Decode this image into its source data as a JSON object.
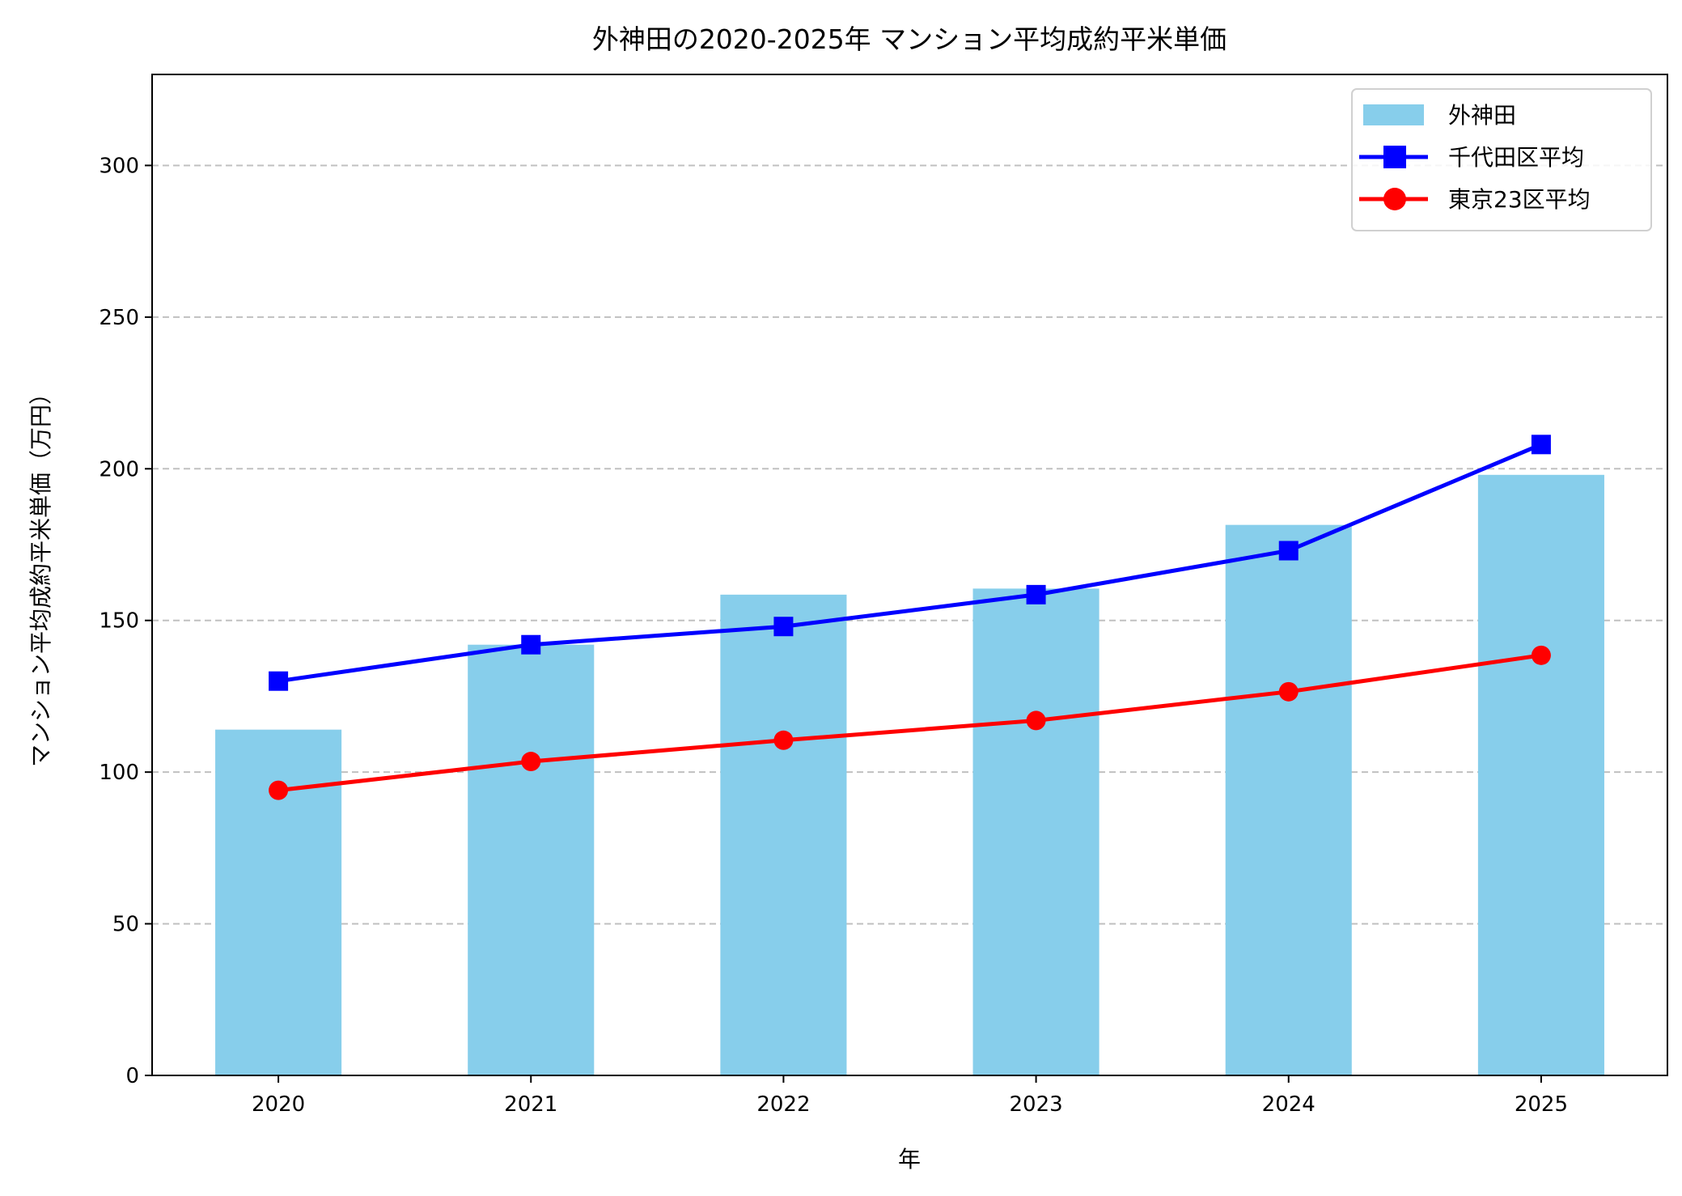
{
  "chart_data": {
    "type": "bar+line",
    "title": "外神田の2020-2025年 マンション平均成約平米単価",
    "xlabel": "年",
    "ylabel": "マンション平均成約平米単価（万円）",
    "categories": [
      "2020",
      "2021",
      "2022",
      "2023",
      "2024",
      "2025"
    ],
    "ylim": [
      0,
      330
    ],
    "yticks": [
      0,
      50,
      100,
      150,
      200,
      250,
      300
    ],
    "grid": "y, dashed",
    "legend_position": "top-right",
    "series": [
      {
        "name": "外神田",
        "kind": "bar",
        "color": "#87ceeb",
        "values": [
          114,
          142,
          158.5,
          160.5,
          181.5,
          198
        ]
      },
      {
        "name": "千代田区平均",
        "kind": "line",
        "marker": "square",
        "color": "#0000ff",
        "values": [
          130,
          142,
          148,
          158.5,
          173,
          208
        ]
      },
      {
        "name": "東京23区平均",
        "kind": "line",
        "marker": "circle",
        "color": "#ff0000",
        "values": [
          94,
          103.5,
          110.5,
          117,
          126.5,
          138.5
        ]
      }
    ]
  }
}
